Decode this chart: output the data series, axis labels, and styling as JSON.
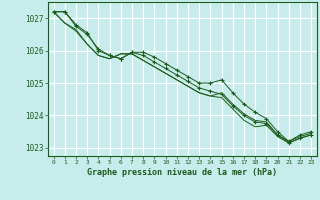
{
  "title": "Graphe pression niveau de la mer (hPa)",
  "bg_color": "#c8ecec",
  "plot_bg_color": "#c8ecec",
  "grid_color": "#aadddd",
  "line_color": "#1a5c1a",
  "marker_color": "#1a5c1a",
  "xlim": [
    -0.5,
    23.5
  ],
  "ylim": [
    1022.75,
    1027.5
  ],
  "yticks": [
    1023,
    1024,
    1025,
    1026,
    1027
  ],
  "xticks": [
    0,
    1,
    2,
    3,
    4,
    5,
    6,
    7,
    8,
    9,
    10,
    11,
    12,
    13,
    14,
    15,
    16,
    17,
    18,
    19,
    20,
    21,
    22,
    23
  ],
  "line1": [
    1027.2,
    1027.2,
    1026.8,
    1026.55,
    1026.0,
    1025.85,
    1025.75,
    1025.95,
    1025.95,
    1025.8,
    1025.6,
    1025.4,
    1025.2,
    1025.0,
    1025.0,
    1025.1,
    1024.7,
    1024.35,
    1024.1,
    1023.9,
    1023.5,
    1023.2,
    1023.4,
    1023.5
  ],
  "line2": [
    1027.2,
    1026.85,
    1026.65,
    1026.2,
    1025.85,
    1025.75,
    1025.9,
    1025.9,
    1025.7,
    1025.5,
    1025.3,
    1025.1,
    1024.9,
    1024.7,
    1024.6,
    1024.7,
    1024.35,
    1024.05,
    1023.85,
    1023.8,
    1023.4,
    1023.2,
    1023.35,
    1023.45
  ],
  "line3": [
    1027.2,
    1026.85,
    1026.6,
    1026.2,
    1025.85,
    1025.75,
    1025.9,
    1025.9,
    1025.7,
    1025.5,
    1025.3,
    1025.1,
    1024.9,
    1024.7,
    1024.6,
    1024.55,
    1024.2,
    1023.85,
    1023.65,
    1023.7,
    1023.35,
    1023.15,
    1023.3,
    1023.4
  ],
  "line4": [
    1027.2,
    1027.2,
    1026.75,
    1026.5,
    1026.05,
    1025.85,
    1025.75,
    1025.95,
    1025.85,
    1025.65,
    1025.45,
    1025.25,
    1025.05,
    1024.85,
    1024.75,
    1024.65,
    1024.3,
    1024.0,
    1023.8,
    1023.75,
    1023.4,
    1023.15,
    1023.3,
    1023.4
  ]
}
